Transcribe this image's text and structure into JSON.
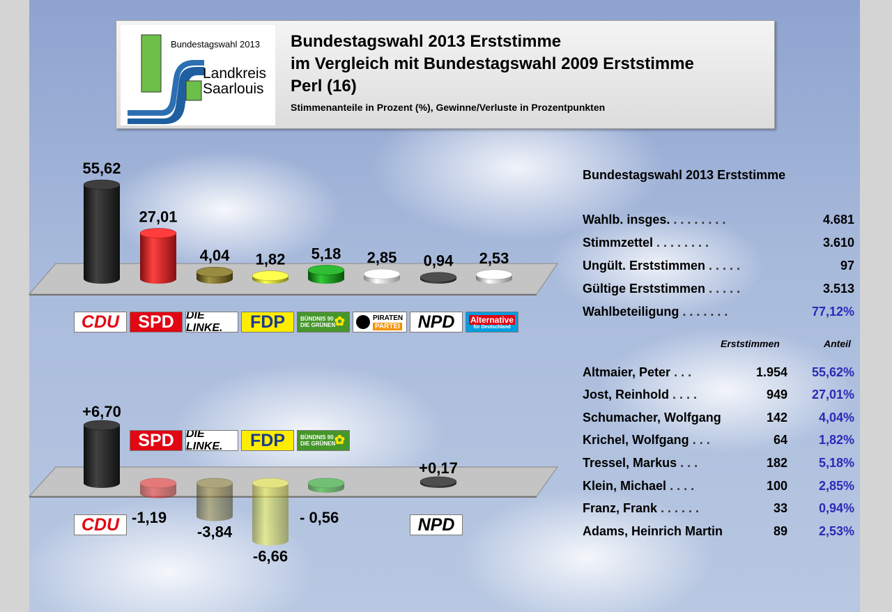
{
  "header": {
    "logo_text_top": "Bundestagswahl 2013",
    "logo_text_1": "Landkreis",
    "logo_text_2": "Saarlouis",
    "title_1": "Bundestagswahl 2013 Erststimme",
    "title_2": "im Vergleich mit Bundestagswahl 2009 Erststimme",
    "title_3": "Perl (16)",
    "subtitle": "Stimmenanteile in Prozent (%), Gewinne/Verluste in Prozentpunkten"
  },
  "colors": {
    "CDU": "#1c1c1c",
    "SPD": "#e31b1b",
    "LINKE": "#6b5f1e",
    "FDP": "#d6d62a",
    "GRUENE": "#0f8a12",
    "PIRATEN": "#f2f2f2",
    "NPD": "#2a2a2a",
    "AFD": "#d9d9d9"
  },
  "chart_data": [
    {
      "type": "bar",
      "categories": [
        "CDU",
        "SPD",
        "DIE LINKE.",
        "FDP",
        "BÜNDNIS 90 DIE GRÜNEN",
        "PIRATEN PARTEI",
        "NPD",
        "Alternative für Deutschland"
      ],
      "values": [
        55.62,
        27.01,
        4.04,
        1.82,
        5.18,
        2.85,
        0.94,
        2.53
      ],
      "labels": [
        "55,62",
        "27,01",
        "4,04",
        "1,82",
        "5,18",
        "2,85",
        "0,94",
        "2,53"
      ],
      "ylim": [
        0,
        60
      ]
    },
    {
      "type": "bar",
      "categories": [
        "CDU",
        "SPD",
        "DIE LINKE.",
        "FDP",
        "BÜNDNIS 90 DIE GRÜNEN",
        "NPD"
      ],
      "values": [
        6.7,
        -1.19,
        -3.84,
        -6.66,
        -0.56,
        0.17
      ],
      "labels": [
        "+6,70",
        "-1,19",
        "-3,84",
        "-6,66",
        "- 0,56",
        "+0,17"
      ],
      "ylim": [
        -8,
        8
      ]
    }
  ],
  "logos": {
    "cdu": "CDU",
    "spd": "SPD",
    "linke": "DIE LINKE.",
    "fdp": "FDP",
    "gruene_1": "BÜNDNIS 90",
    "gruene_2": "DIE GRÜNEN",
    "piraten_1": "PIRATEN",
    "piraten_2": "PARTEI",
    "npd": "NPD",
    "afd_1": "Alternative",
    "afd_2": "für Deutschland"
  },
  "stats": {
    "title": "Bundestagswahl 2013 Erststimme",
    "rows": [
      {
        "label": "Wahlb. insges.",
        "dots": "........",
        "value": "4.681"
      },
      {
        "label": "Stimmzettel",
        "dots": "........",
        "value": "3.610"
      },
      {
        "label": "Ungült. Erststimmen",
        "dots": ".....",
        "value": "97"
      },
      {
        "label": "Gültige Erststimmen",
        "dots": ".....",
        "value": "3.513"
      },
      {
        "label": "Wahlbeteiligung",
        "dots": ".......",
        "value": "77,12%"
      }
    ],
    "col_erststimmen": "Erststimmen",
    "col_anteil": "Anteil",
    "candidates": [
      {
        "name": "Altmaier, Peter",
        "dots": "...",
        "votes": "1.954",
        "share": "55,62%"
      },
      {
        "name": "Jost, Reinhold",
        "dots": "....",
        "votes": "949",
        "share": "27,01%"
      },
      {
        "name": "Schumacher, Wolfgang",
        "dots": "",
        "votes": "142",
        "share": "4,04%"
      },
      {
        "name": "Krichel, Wolfgang",
        "dots": "...",
        "votes": "64",
        "share": "1,82%"
      },
      {
        "name": "Tressel, Markus",
        "dots": "...",
        "votes": "182",
        "share": "5,18%"
      },
      {
        "name": "Klein, Michael",
        "dots": "....",
        "votes": "100",
        "share": "2,85%"
      },
      {
        "name": "Franz, Frank",
        "dots": "......",
        "votes": "33",
        "share": "0,94%"
      },
      {
        "name": "Adams, Heinrich Martin",
        "dots": "",
        "votes": "89",
        "share": "2,53%"
      }
    ]
  }
}
